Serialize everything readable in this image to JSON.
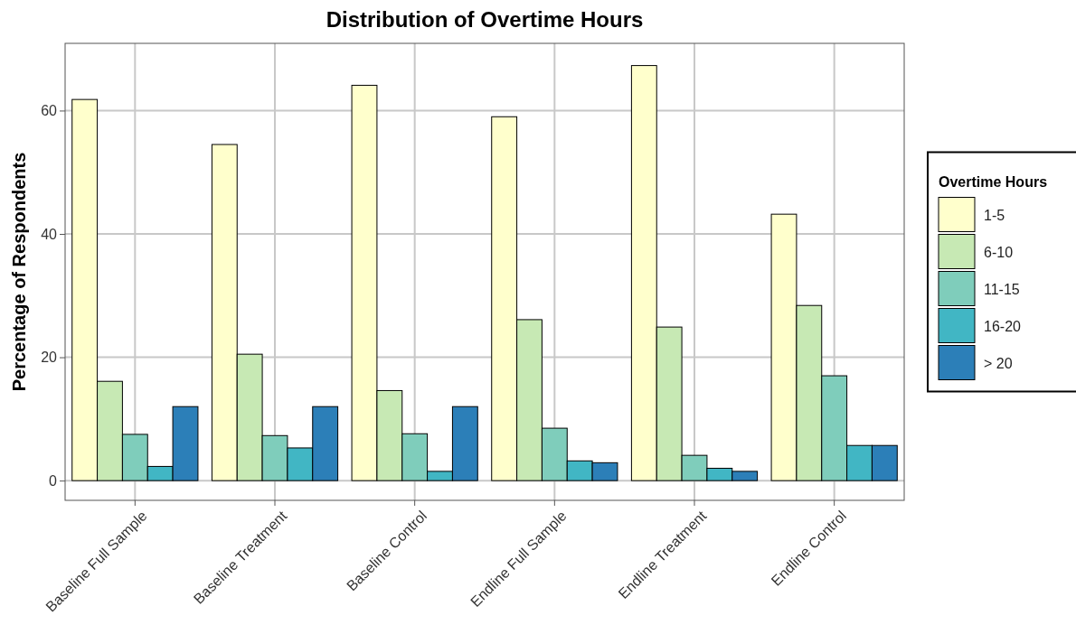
{
  "chart_data": {
    "type": "bar",
    "title": "Distribution of Overtime Hours",
    "ylabel": "Percentage of Respondents",
    "legend_title": "Overtime Hours",
    "categories": [
      "Baseline Full Sample",
      "Baseline Treatment",
      "Baseline Control",
      "Endline Full Sample",
      "Endline Treatment",
      "Endline Control"
    ],
    "series": [
      {
        "name": "1-5",
        "color": "#ffffcc",
        "values": [
          61.8,
          54.5,
          64.1,
          59.0,
          67.3,
          43.2
        ]
      },
      {
        "name": "6-10",
        "color": "#c7e9b4",
        "values": [
          16.1,
          20.5,
          14.6,
          26.1,
          24.9,
          28.4
        ]
      },
      {
        "name": "11-15",
        "color": "#7fcdbb",
        "values": [
          7.5,
          7.3,
          7.6,
          8.5,
          4.1,
          17.0
        ]
      },
      {
        "name": "16-20",
        "color": "#41b6c4",
        "values": [
          2.3,
          5.3,
          1.5,
          3.2,
          2.0,
          5.7
        ]
      },
      {
        "name": "> 20",
        "color": "#2c7fb8",
        "values": [
          12.0,
          12.0,
          12.0,
          2.9,
          1.5,
          5.7
        ]
      }
    ],
    "ylim": [
      -3.2,
      70.9
    ],
    "yticks": [
      0,
      20,
      40,
      60
    ],
    "grid": true,
    "legend": "right"
  }
}
